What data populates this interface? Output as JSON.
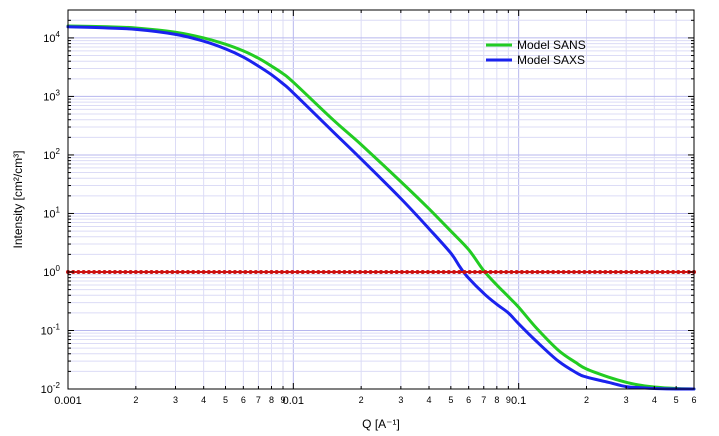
{
  "chart_data": {
    "type": "line",
    "x_scale": "log",
    "y_scale": "log",
    "xlim": [
      0.001,
      0.6
    ],
    "ylim": [
      0.01,
      30000
    ],
    "grid": true,
    "legend_placement": "top-right",
    "xlabel": "Q [A⁻¹]",
    "ylabel": "Intensity [cm²/cm³]",
    "x_major_ticks": [
      0.001,
      0.01,
      0.1
    ],
    "x_major_labels": [
      "0.001",
      "0.01",
      "0.1"
    ],
    "x_minor_labels": [
      "2",
      "3",
      "4",
      "5",
      "6",
      "7",
      "8",
      "9"
    ],
    "x_end_label": "6",
    "y_major_ticks": [
      0.01,
      0.1,
      1,
      10,
      100,
      1000,
      10000
    ],
    "y_major_labels": [
      {
        "base": "10",
        "exp": "-2"
      },
      {
        "base": "10",
        "exp": "-1"
      },
      {
        "base": "10",
        "exp": "0"
      },
      {
        "base": "10",
        "exp": "1"
      },
      {
        "base": "10",
        "exp": "2"
      },
      {
        "base": "10",
        "exp": "3"
      },
      {
        "base": "10",
        "exp": "4"
      }
    ],
    "series": [
      {
        "name": "Model  SANS",
        "color": "#22cc22",
        "x": [
          0.001,
          0.0015,
          0.002,
          0.003,
          0.004,
          0.005,
          0.006,
          0.007,
          0.008,
          0.009,
          0.01,
          0.015,
          0.02,
          0.03,
          0.04,
          0.05,
          0.06,
          0.07,
          0.08,
          0.09,
          0.1,
          0.12,
          0.15,
          0.18,
          0.2,
          0.25,
          0.3,
          0.35,
          0.4,
          0.5,
          0.6
        ],
        "y": [
          16000,
          15500,
          14800,
          12500,
          10000,
          7800,
          6000,
          4500,
          3300,
          2450,
          1750,
          400,
          150,
          35,
          12,
          5,
          2.4,
          1.05,
          0.6,
          0.38,
          0.25,
          0.11,
          0.046,
          0.028,
          0.022,
          0.016,
          0.013,
          0.0115,
          0.0108,
          0.0102,
          0.01
        ]
      },
      {
        "name": "Model  SAXS",
        "color": "#1a22ee",
        "x": [
          0.001,
          0.0015,
          0.002,
          0.003,
          0.004,
          0.005,
          0.006,
          0.007,
          0.008,
          0.009,
          0.01,
          0.015,
          0.02,
          0.03,
          0.04,
          0.05,
          0.055,
          0.06,
          0.07,
          0.08,
          0.09,
          0.1,
          0.12,
          0.15,
          0.18,
          0.2,
          0.25,
          0.3,
          0.35,
          0.4,
          0.5,
          0.6
        ],
        "y": [
          15500,
          14800,
          14000,
          11500,
          8800,
          6500,
          4700,
          3300,
          2350,
          1650,
          1150,
          250,
          85,
          18,
          5.5,
          2.1,
          1.2,
          0.78,
          0.43,
          0.28,
          0.2,
          0.13,
          0.065,
          0.03,
          0.019,
          0.016,
          0.013,
          0.011,
          0.0105,
          0.0102,
          0.01,
          0.01
        ]
      },
      {
        "name": "",
        "color": "#cc1111",
        "marker": "dot",
        "x": [
          0.001,
          0.6
        ],
        "y": [
          1,
          1
        ]
      }
    ],
    "legend": [
      {
        "label": "Model  SANS",
        "color": "#22cc22"
      },
      {
        "label": "Model  SAXS",
        "color": "#1a22ee"
      }
    ]
  }
}
